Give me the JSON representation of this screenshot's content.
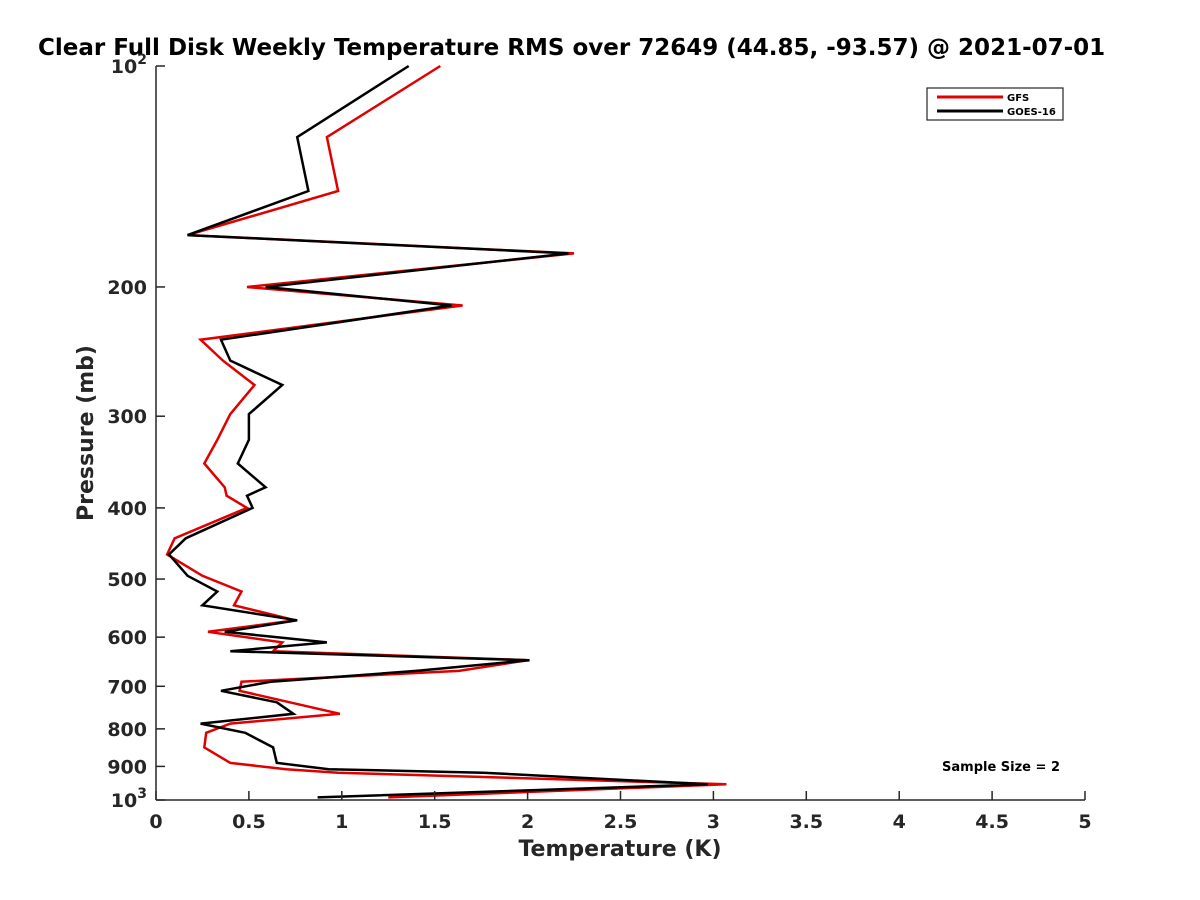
{
  "chart_data": {
    "type": "line",
    "title": "Clear Full Disk Weekly Temperature RMS over 72649 (44.85, -93.57) @ 2021-07-01",
    "xlabel": "Temperature (K)",
    "ylabel": "Pressure (mb)",
    "xlim": [
      0,
      5
    ],
    "ylim": [
      1000,
      100
    ],
    "yscale": "log",
    "y_reversed": true,
    "grid": false,
    "legend_position": "top-right",
    "x_ticks": [
      0,
      0.5,
      1,
      1.5,
      2,
      2.5,
      3,
      3.5,
      4,
      4.5,
      5
    ],
    "x_tick_labels": [
      "0",
      "0.5",
      "1",
      "1.5",
      "2",
      "2.5",
      "3",
      "3.5",
      "4",
      "4.5",
      "5"
    ],
    "y_ticks": [
      {
        "value": 100,
        "base": "10",
        "exp": "2"
      },
      {
        "value": 200,
        "label": "200"
      },
      {
        "value": 300,
        "label": "300"
      },
      {
        "value": 400,
        "label": "400"
      },
      {
        "value": 500,
        "label": "500"
      },
      {
        "value": 600,
        "label": "600"
      },
      {
        "value": 700,
        "label": "700"
      },
      {
        "value": 800,
        "label": "800"
      },
      {
        "value": 900,
        "label": "900"
      },
      {
        "value": 1000,
        "base": "10",
        "exp": "3"
      }
    ],
    "series": [
      {
        "name": "GFS",
        "color": "#e00000",
        "x": [
          1.53,
          0.92,
          0.98,
          0.17,
          2.25,
          0.49,
          1.65,
          0.24,
          0.36,
          0.53,
          0.4,
          0.33,
          0.26,
          0.37,
          0.38,
          0.49,
          0.1,
          0.06,
          0.25,
          0.46,
          0.42,
          0.75,
          0.28,
          0.68,
          0.63,
          2.0,
          1.63,
          0.46,
          0.45,
          0.72,
          0.99,
          0.4,
          0.27,
          0.26,
          0.4,
          0.7,
          0.98,
          3.07,
          1.25
        ],
        "y": [
          100,
          125,
          148,
          170,
          180,
          200,
          212,
          236,
          252,
          272,
          298,
          323,
          348,
          375,
          385,
          400,
          440,
          463,
          495,
          520,
          543,
          569,
          590,
          610,
          627,
          645,
          667,
          690,
          710,
          736,
          763,
          787,
          810,
          848,
          890,
          908,
          918,
          952,
          992
        ]
      },
      {
        "name": "GOES-16",
        "color": "#000000",
        "x": [
          1.36,
          0.76,
          0.82,
          0.17,
          2.22,
          0.59,
          1.59,
          0.35,
          0.4,
          0.68,
          0.5,
          0.5,
          0.44,
          0.59,
          0.49,
          0.52,
          0.16,
          0.07,
          0.17,
          0.33,
          0.25,
          0.76,
          0.37,
          0.92,
          0.4,
          2.01,
          1.4,
          0.62,
          0.35,
          0.65,
          0.74,
          0.24,
          0.48,
          0.63,
          0.65,
          0.93,
          1.76,
          2.97,
          0.87
        ],
        "y": [
          100,
          125,
          148,
          170,
          180,
          200,
          212,
          236,
          252,
          272,
          298,
          323,
          348,
          375,
          385,
          400,
          440,
          463,
          495,
          520,
          543,
          569,
          590,
          610,
          627,
          645,
          667,
          690,
          710,
          736,
          763,
          787,
          810,
          848,
          890,
          908,
          918,
          952,
          992
        ]
      }
    ],
    "annotation": "Sample Size = 2"
  }
}
